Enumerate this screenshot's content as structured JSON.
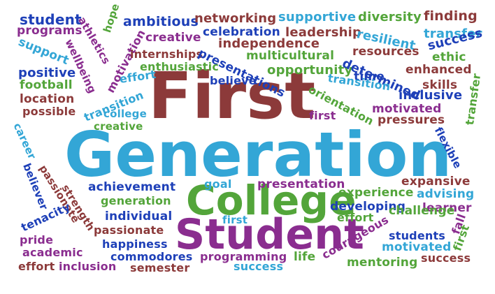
{
  "title_words": {
    "first": "First",
    "generation": "Generation",
    "college": "College",
    "student": "Student"
  },
  "words": [
    "student",
    "athletics",
    "ambitious",
    "networking",
    "supportive",
    "diversity",
    "finding",
    "programs",
    "creative",
    "celebration",
    "leadership",
    "resilient",
    "transfer",
    "support",
    "hope",
    "independence",
    "success",
    "wellbeing",
    "motivation",
    "internships",
    "presentations",
    "multicultural",
    "resources",
    "ethic",
    "positive",
    "effort",
    "enthusiastic",
    "opportunity",
    "determined",
    "enhanced",
    "football",
    "believe",
    "time",
    "skills",
    "location",
    "transition",
    "orientation",
    "inclusive",
    "transfer",
    "possible",
    "college",
    "first",
    "motivated",
    "pressures",
    "career",
    "creative",
    "flexible",
    "believer",
    "passionate",
    "goal",
    "presentation",
    "expansive",
    "achievement",
    "experience",
    "advising",
    "generation",
    "strength",
    "developing",
    "learner",
    "individual",
    "effort",
    "challenge",
    "tenacity",
    "passionate",
    "first",
    "courageous",
    "students",
    "fall",
    "pride",
    "happiness",
    "motivated",
    "first",
    "academic",
    "commodores",
    "programming",
    "life",
    "mentoring",
    "success",
    "effort",
    "inclusion",
    "semester",
    "success"
  ]
}
